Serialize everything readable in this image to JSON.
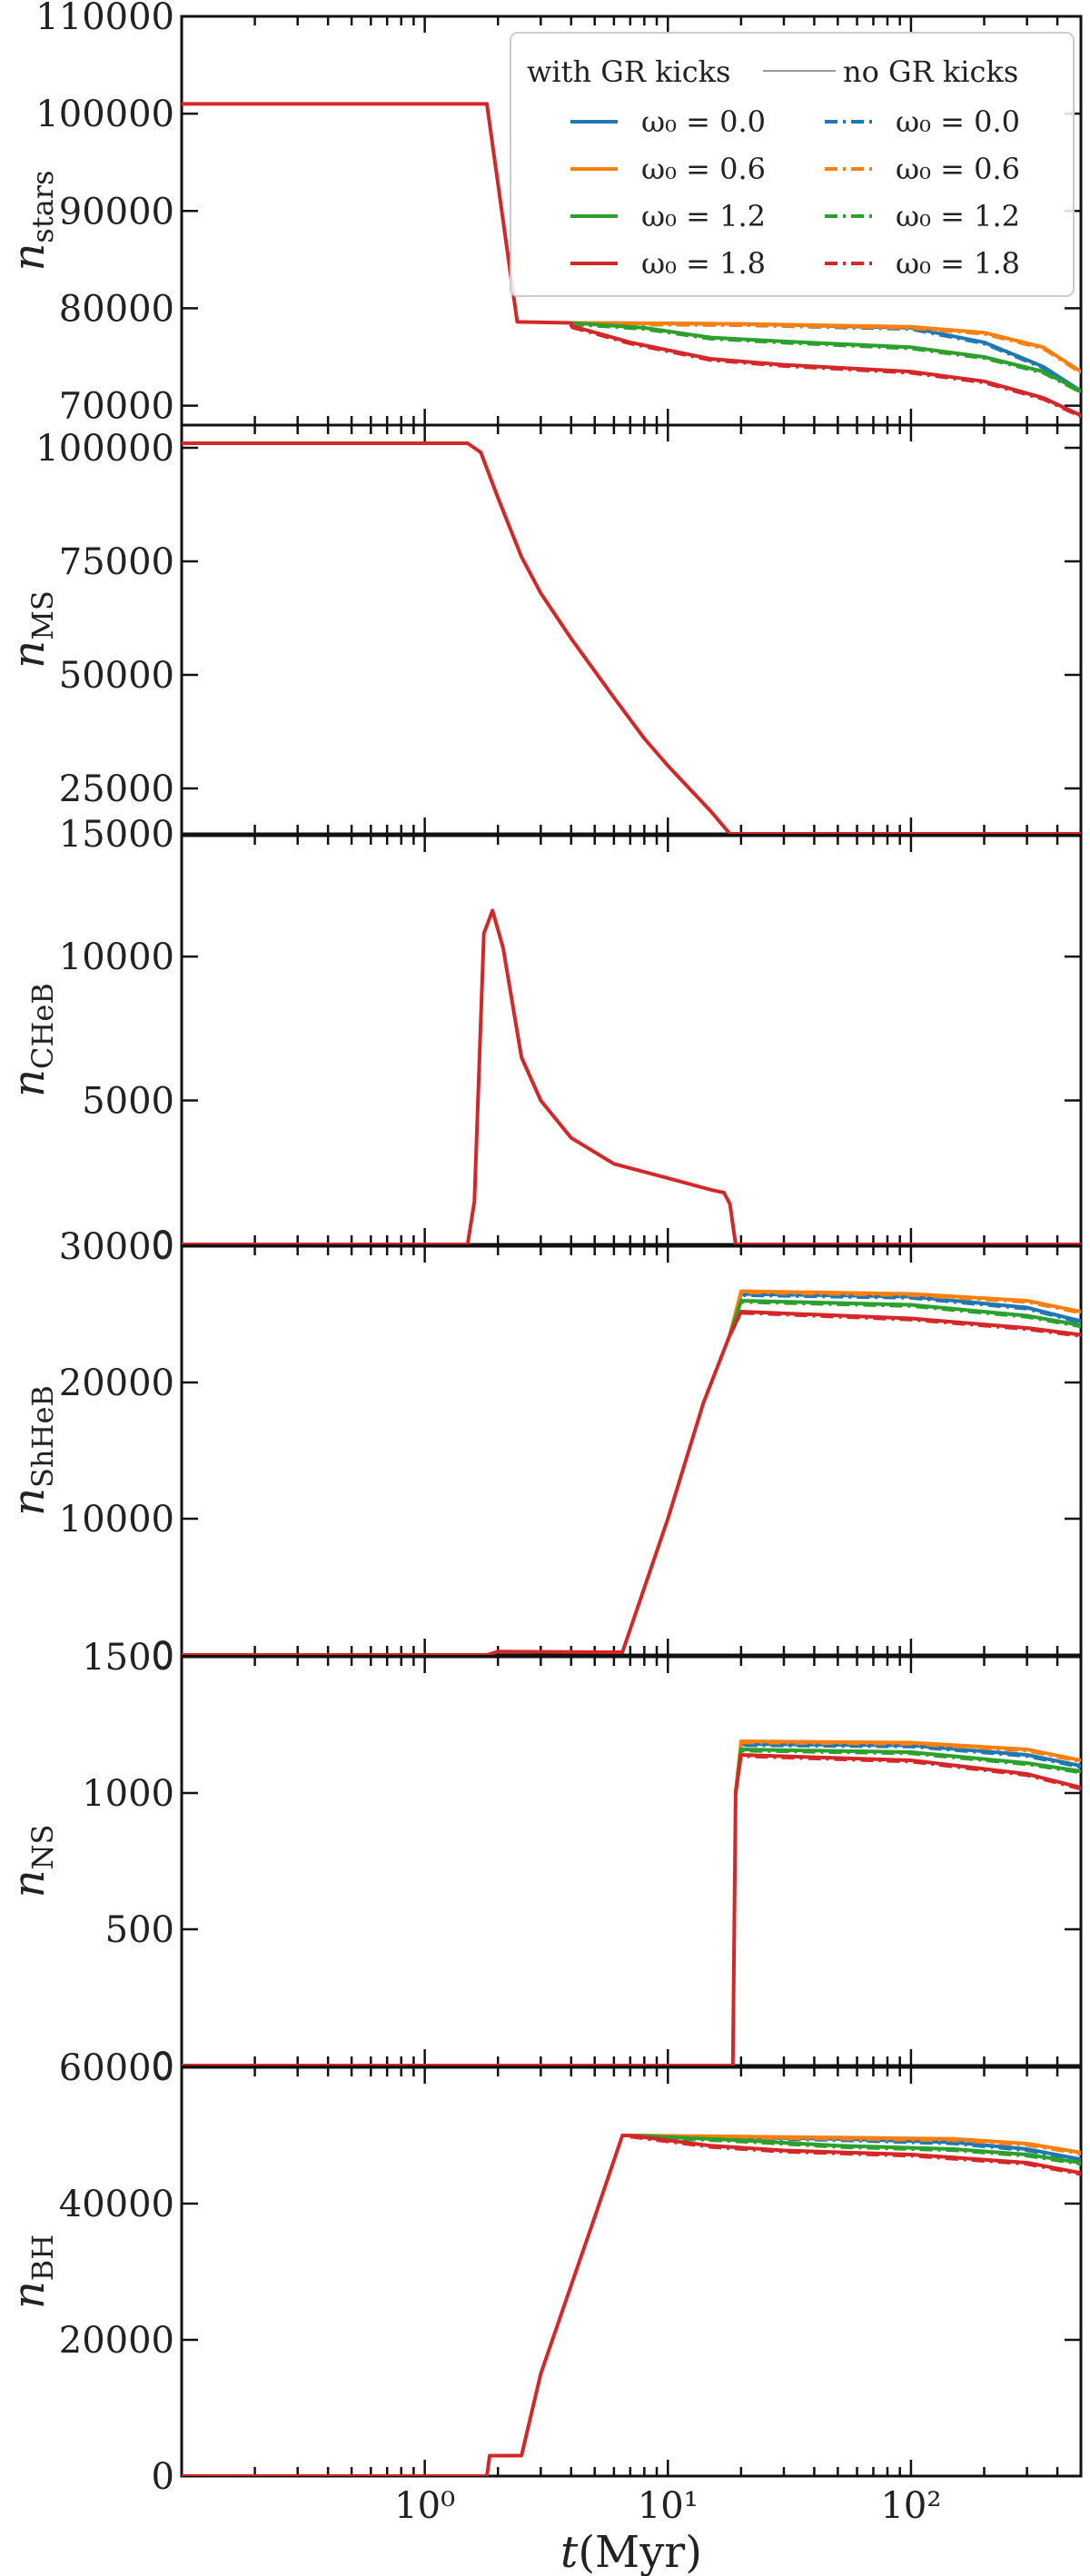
{
  "chart_data": {
    "type": "line",
    "layout": "stacked-subplots-shared-x",
    "xscale": "log",
    "xlim": [
      0.1,
      500
    ],
    "xlabel": "t(Myr)",
    "xticks": [
      {
        "value": 1,
        "label": "10⁰"
      },
      {
        "value": 10,
        "label": "10¹"
      },
      {
        "value": 100,
        "label": "10²"
      }
    ],
    "legend": {
      "placement": "top-right",
      "panel": 0,
      "col_titles": [
        "with GR kicks",
        "no GR kicks"
      ],
      "entries_left": [
        "ω₀ = 0.0",
        "ω₀ = 0.6",
        "ω₀ = 1.2",
        "ω₀ = 1.8"
      ],
      "entries_right": [
        "ω₀ = 0.0",
        "ω₀ = 0.6",
        "ω₀ = 1.2",
        "ω₀ = 1.8"
      ]
    },
    "series_style": [
      {
        "omega0": 0.0,
        "color": "#1f77b4"
      },
      {
        "omega0": 0.6,
        "color": "#ff7f0e"
      },
      {
        "omega0": 1.2,
        "color": "#2ca02c"
      },
      {
        "omega0": 1.8,
        "color": "#d62728"
      }
    ],
    "panels": [
      {
        "ylabel": "n_stars",
        "ylim": [
          68000,
          110000
        ],
        "yticks": [
          "70000",
          "80000",
          "90000",
          "100000",
          "110000"
        ],
        "ytick_values": [
          70000,
          80000,
          90000,
          100000,
          110000
        ],
        "shared": [
          [
            0.1,
            101000
          ],
          [
            1.8,
            101000
          ],
          [
            2.4,
            78600
          ],
          [
            4,
            78500
          ]
        ],
        "series": [
          {
            "omega0": 0.0,
            "values": [
              [
                4,
                78500
              ],
              [
                20,
                78400
              ],
              [
                100,
                78000
              ],
              [
                200,
                76500
              ],
              [
                350,
                74000
              ],
              [
                500,
                71500
              ]
            ]
          },
          {
            "omega0": 0.6,
            "values": [
              [
                4,
                78500
              ],
              [
                20,
                78400
              ],
              [
                100,
                78100
              ],
              [
                200,
                77500
              ],
              [
                350,
                76000
              ],
              [
                500,
                73500
              ]
            ]
          },
          {
            "omega0": 1.2,
            "values": [
              [
                4,
                78500
              ],
              [
                8,
                78000
              ],
              [
                15,
                77000
              ],
              [
                30,
                76600
              ],
              [
                100,
                76000
              ],
              [
                200,
                75000
              ],
              [
                350,
                73500
              ],
              [
                500,
                71500
              ]
            ]
          },
          {
            "omega0": 1.8,
            "values": [
              [
                4,
                78200
              ],
              [
                7,
                76500
              ],
              [
                15,
                74800
              ],
              [
                30,
                74200
              ],
              [
                100,
                73500
              ],
              [
                200,
                72500
              ],
              [
                350,
                70800
              ],
              [
                500,
                69000
              ]
            ]
          }
        ]
      },
      {
        "ylabel": "n_MS",
        "ylim": [
          15000,
          105000
        ],
        "yticks": [
          "15000",
          "25000",
          "50000",
          "75000",
          "100000"
        ],
        "ytick_values": [
          15000,
          25000,
          50000,
          75000,
          100000
        ],
        "shared": [
          [
            0.1,
            101000
          ],
          [
            1.5,
            101000
          ],
          [
            1.7,
            99000
          ],
          [
            2,
            89000
          ],
          [
            2.5,
            76000
          ],
          [
            3,
            68000
          ],
          [
            4,
            58000
          ],
          [
            6,
            45000
          ],
          [
            8,
            36000
          ],
          [
            10,
            30000
          ],
          [
            15,
            20000
          ],
          [
            18,
            15000
          ],
          [
            500,
            15000
          ]
        ],
        "series": []
      },
      {
        "ylabel": "n_CHeB",
        "ylim": [
          0,
          14200
        ],
        "yticks": [
          "0",
          "5000",
          "10000"
        ],
        "ytick_values": [
          0,
          5000,
          10000
        ],
        "shared": [
          [
            0.1,
            0
          ],
          [
            1.5,
            0
          ],
          [
            1.6,
            1500
          ],
          [
            1.75,
            10800
          ],
          [
            1.9,
            11600
          ],
          [
            2.1,
            10300
          ],
          [
            2.5,
            6500
          ],
          [
            3,
            5000
          ],
          [
            4,
            3700
          ],
          [
            6,
            2800
          ],
          [
            10,
            2300
          ],
          [
            15,
            1900
          ],
          [
            17,
            1800
          ],
          [
            18,
            1400
          ],
          [
            19,
            0
          ],
          [
            500,
            0
          ]
        ],
        "series": []
      },
      {
        "ylabel": "n_ShHeB",
        "ylim": [
          0,
          30000
        ],
        "yticks": [
          "0",
          "10000",
          "20000",
          "30000"
        ],
        "ytick_values": [
          0,
          10000,
          20000,
          30000
        ],
        "shared": [
          [
            0.1,
            0
          ],
          [
            1.8,
            0
          ],
          [
            2,
            250
          ],
          [
            6.5,
            200
          ],
          [
            10,
            10000
          ],
          [
            14,
            18500
          ],
          [
            18,
            23500
          ]
        ],
        "series": [
          {
            "omega0": 0.0,
            "values": [
              [
                18,
                23500
              ],
              [
                20,
                26500
              ],
              [
                100,
                26300
              ],
              [
                300,
                25500
              ],
              [
                500,
                24500
              ]
            ]
          },
          {
            "omega0": 0.6,
            "values": [
              [
                18,
                23500
              ],
              [
                20,
                26700
              ],
              [
                100,
                26500
              ],
              [
                300,
                26000
              ],
              [
                500,
                25200
              ]
            ]
          },
          {
            "omega0": 1.2,
            "values": [
              [
                18,
                23500
              ],
              [
                20,
                26000
              ],
              [
                100,
                25700
              ],
              [
                300,
                24900
              ],
              [
                500,
                24200
              ]
            ]
          },
          {
            "omega0": 1.8,
            "values": [
              [
                18,
                23500
              ],
              [
                20,
                25200
              ],
              [
                100,
                24700
              ],
              [
                300,
                24000
              ],
              [
                500,
                23500
              ]
            ]
          }
        ]
      },
      {
        "ylabel": "n_NS",
        "ylim": [
          0,
          1500
        ],
        "yticks": [
          "0",
          "500",
          "1000",
          "1500"
        ],
        "ytick_values": [
          0,
          500,
          1000,
          1500
        ],
        "shared": [
          [
            0.1,
            0
          ],
          [
            18.5,
            0
          ],
          [
            19,
            1000
          ]
        ],
        "series": [
          {
            "omega0": 0.0,
            "values": [
              [
                19,
                1000
              ],
              [
                20,
                1180
              ],
              [
                100,
                1175
              ],
              [
                300,
                1140
              ],
              [
                500,
                1100
              ]
            ]
          },
          {
            "omega0": 0.6,
            "values": [
              [
                19,
                1000
              ],
              [
                20,
                1190
              ],
              [
                100,
                1185
              ],
              [
                300,
                1160
              ],
              [
                500,
                1120
              ]
            ]
          },
          {
            "omega0": 1.2,
            "values": [
              [
                19,
                1000
              ],
              [
                20,
                1160
              ],
              [
                100,
                1150
              ],
              [
                300,
                1110
              ],
              [
                500,
                1080
              ]
            ]
          },
          {
            "omega0": 1.8,
            "values": [
              [
                19,
                1000
              ],
              [
                20,
                1140
              ],
              [
                100,
                1120
              ],
              [
                300,
                1070
              ],
              [
                500,
                1020
              ]
            ]
          }
        ]
      },
      {
        "ylabel": "n_BH",
        "ylim": [
          0,
          60000
        ],
        "yticks": [
          "0",
          "20000",
          "40000",
          "60000"
        ],
        "ytick_values": [
          0,
          20000,
          40000,
          60000
        ],
        "shared": [
          [
            0.1,
            0
          ],
          [
            1.8,
            0
          ],
          [
            1.85,
            3000
          ],
          [
            2.5,
            3000
          ],
          [
            3,
            15000
          ],
          [
            4,
            28000
          ],
          [
            5,
            38000
          ],
          [
            6.5,
            50000
          ],
          [
            7,
            50000
          ]
        ],
        "series": [
          {
            "omega0": 0.0,
            "values": [
              [
                7,
                50000
              ],
              [
                50,
                49500
              ],
              [
                150,
                49000
              ],
              [
                300,
                48000
              ],
              [
                500,
                46500
              ]
            ]
          },
          {
            "omega0": 0.6,
            "values": [
              [
                7,
                50000
              ],
              [
                50,
                49700
              ],
              [
                150,
                49500
              ],
              [
                300,
                48800
              ],
              [
                500,
                47500
              ]
            ]
          },
          {
            "omega0": 1.2,
            "values": [
              [
                7,
                50000
              ],
              [
                20,
                49300
              ],
              [
                50,
                48500
              ],
              [
                150,
                48000
              ],
              [
                300,
                47200
              ],
              [
                500,
                46000
              ]
            ]
          },
          {
            "omega0": 1.8,
            "values": [
              [
                7,
                50000
              ],
              [
                15,
                48500
              ],
              [
                30,
                47800
              ],
              [
                100,
                47200
              ],
              [
                300,
                46000
              ],
              [
                500,
                44500
              ]
            ]
          }
        ]
      }
    ]
  }
}
